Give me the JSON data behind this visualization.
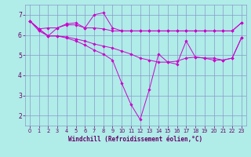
{
  "background_color": "#b0ece8",
  "line_color": "#cc00cc",
  "grid_color": "#8899cc",
  "xlabel": "Windchill (Refroidissement éolien,°C)",
  "xlim": [
    -0.5,
    23.5
  ],
  "ylim": [
    1.5,
    7.5
  ],
  "yticks": [
    2,
    3,
    4,
    5,
    6,
    7
  ],
  "xticks": [
    0,
    1,
    2,
    3,
    4,
    5,
    6,
    7,
    8,
    9,
    10,
    11,
    12,
    13,
    14,
    15,
    16,
    17,
    18,
    19,
    20,
    21,
    22,
    23
  ],
  "series": [
    {
      "x": [
        0,
        1,
        2,
        3,
        4,
        5,
        6,
        7,
        8,
        9,
        10,
        11,
        12,
        13,
        14,
        15,
        16,
        17,
        18,
        19,
        20,
        21,
        22,
        23
      ],
      "y": [
        6.7,
        6.3,
        6.35,
        6.35,
        6.55,
        6.6,
        6.35,
        7.0,
        7.1,
        6.35,
        6.2,
        6.2,
        6.2,
        6.2,
        6.2,
        6.2,
        6.2,
        6.2,
        6.2,
        6.2,
        6.2,
        6.2,
        6.2,
        6.6
      ]
    },
    {
      "x": [
        0,
        1,
        2,
        3,
        4,
        5,
        6,
        7,
        8,
        9,
        10,
        11,
        12,
        13,
        14,
        15,
        16,
        17,
        18,
        19,
        20,
        21,
        22,
        23
      ],
      "y": [
        6.7,
        6.3,
        5.95,
        6.35,
        6.5,
        6.5,
        6.35,
        6.35,
        6.3,
        6.2,
        6.2,
        6.2,
        6.2,
        6.2,
        6.2,
        6.2,
        6.2,
        6.2,
        6.2,
        6.2,
        6.2,
        6.2,
        6.2,
        6.6
      ]
    },
    {
      "x": [
        0,
        1,
        2,
        3,
        4,
        5,
        6,
        7,
        8,
        9,
        10,
        11,
        12,
        13,
        14,
        15,
        16,
        17,
        18,
        19,
        20,
        21,
        22,
        23
      ],
      "y": [
        6.7,
        6.3,
        5.95,
        5.95,
        5.9,
        5.8,
        5.7,
        5.55,
        5.45,
        5.35,
        5.2,
        5.05,
        4.85,
        4.75,
        4.65,
        4.65,
        4.7,
        4.85,
        4.9,
        4.85,
        4.85,
        4.75,
        4.85,
        5.85
      ]
    },
    {
      "x": [
        0,
        1,
        2,
        3,
        4,
        5,
        6,
        7,
        8,
        9,
        10,
        11,
        12,
        13,
        14,
        15,
        16,
        17,
        18,
        19,
        20,
        21,
        22,
        23
      ],
      "y": [
        6.7,
        6.2,
        5.95,
        5.95,
        5.85,
        5.7,
        5.5,
        5.25,
        5.05,
        4.75,
        3.6,
        2.55,
        1.8,
        3.3,
        5.05,
        4.65,
        4.55,
        5.7,
        4.9,
        4.85,
        4.75,
        4.75,
        4.85,
        5.85
      ]
    }
  ]
}
